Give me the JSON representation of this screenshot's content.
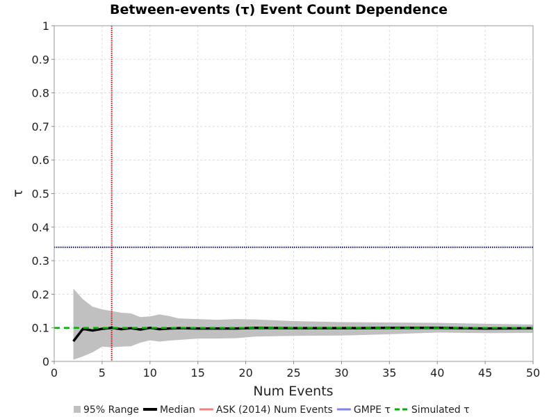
{
  "chart_data": {
    "type": "line",
    "title": "Between-events (τ) Event Count Dependence",
    "xlabel": "Num Events",
    "ylabel": "τ",
    "xlim": [
      0,
      50
    ],
    "ylim": [
      0,
      1
    ],
    "xticks": [
      0,
      5,
      10,
      15,
      20,
      25,
      30,
      35,
      40,
      45,
      50
    ],
    "xtick_labels": [
      "0",
      "5",
      "10",
      "15",
      "20",
      "25",
      "30",
      "35",
      "40",
      "45",
      "50"
    ],
    "yticks": [
      0,
      0.1,
      0.2,
      0.3,
      0.4,
      0.5,
      0.6,
      0.7,
      0.8,
      0.9,
      1
    ],
    "ytick_labels": [
      "0",
      "0.1",
      "0.2",
      "0.3",
      "0.4",
      "0.5",
      "0.6",
      "0.7",
      "0.8",
      "0.9",
      "1"
    ],
    "grid": true,
    "legend_position": "bottom",
    "legend": [
      {
        "label": "95% Range",
        "kind": "box",
        "color": "#c0c0c0"
      },
      {
        "label": "Median",
        "kind": "line",
        "color": "#000000"
      },
      {
        "label": "ASK (2014) Num Events",
        "kind": "line",
        "color": "#f08080"
      },
      {
        "label": "GMPE τ",
        "kind": "line",
        "color": "#8080f0"
      },
      {
        "label": "Simulated τ",
        "kind": "dashed",
        "color": "#00b000"
      }
    ],
    "range_95": {
      "x": [
        2,
        3,
        4,
        5,
        6,
        7,
        8,
        9,
        10,
        11,
        12,
        13,
        15,
        17,
        19,
        21,
        25,
        30,
        35,
        40,
        45,
        50
      ],
      "upper": [
        0.217,
        0.185,
        0.163,
        0.155,
        0.15,
        0.145,
        0.143,
        0.132,
        0.134,
        0.14,
        0.135,
        0.128,
        0.126,
        0.124,
        0.126,
        0.125,
        0.12,
        0.117,
        0.116,
        0.115,
        0.112,
        0.11
      ],
      "lower": [
        0.005,
        0.015,
        0.027,
        0.044,
        0.042,
        0.044,
        0.045,
        0.056,
        0.063,
        0.059,
        0.062,
        0.064,
        0.068,
        0.068,
        0.069,
        0.074,
        0.076,
        0.077,
        0.081,
        0.086,
        0.084,
        0.085
      ]
    },
    "median": {
      "x": [
        2,
        3,
        4,
        5,
        6,
        7,
        8,
        9,
        10,
        11,
        12,
        13,
        15,
        17,
        19,
        21,
        25,
        30,
        35,
        40,
        45,
        50
      ],
      "y": [
        0.06,
        0.097,
        0.092,
        0.097,
        0.1,
        0.096,
        0.099,
        0.095,
        0.1,
        0.096,
        0.098,
        0.099,
        0.098,
        0.098,
        0.098,
        0.1,
        0.099,
        0.099,
        0.1,
        0.1,
        0.098,
        0.099
      ]
    },
    "ask_2014_num_events": 6,
    "gmpe_tau": 0.34,
    "simulated_tau": 0.1
  }
}
